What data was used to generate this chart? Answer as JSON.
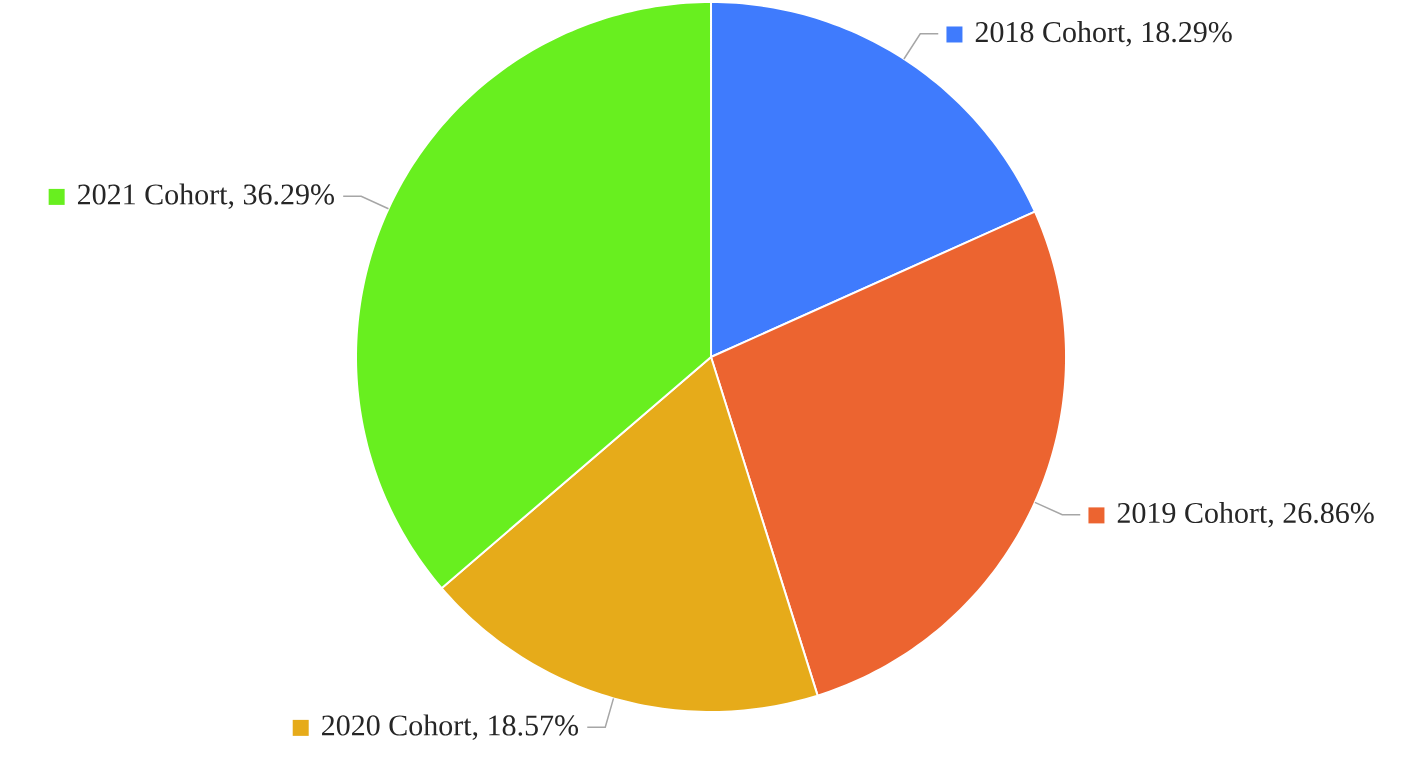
{
  "chart_data": {
    "type": "pie",
    "categories": [
      "2018 Cohort, 18.29%",
      "2019 Cohort, 26.86%",
      "2020 Cohort, 18.57%",
      "2021 Cohort, 36.29%"
    ],
    "values": [
      18.29,
      26.86,
      18.57,
      36.29
    ],
    "legend": "right",
    "colors": [
      "#3f7bfd",
      "#ec6430",
      "#e6ab1a",
      "#68ef1f"
    ]
  }
}
